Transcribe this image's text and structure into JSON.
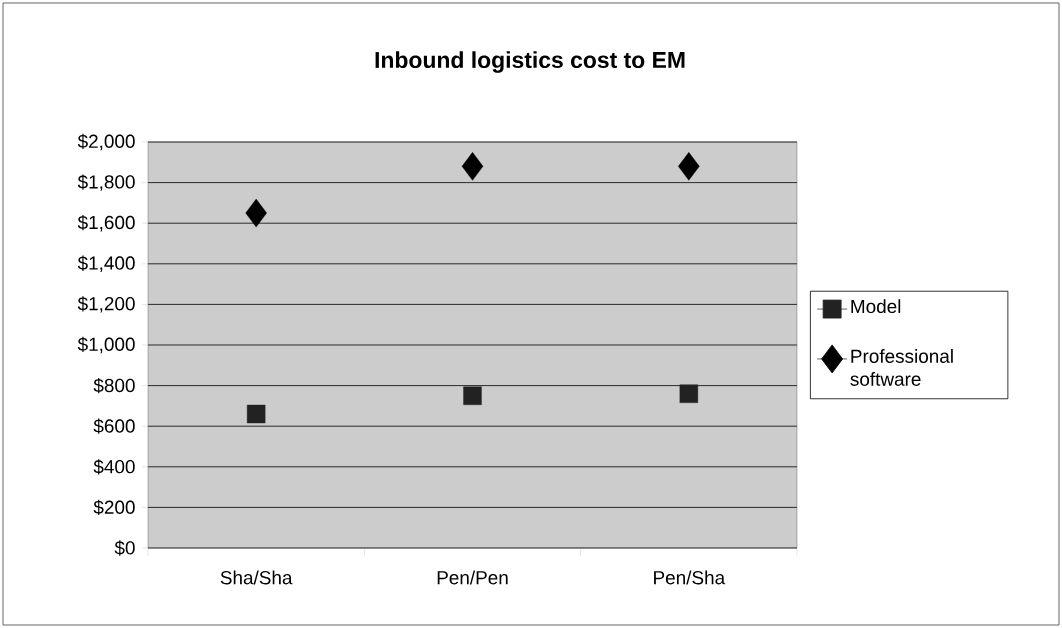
{
  "chart_data": {
    "type": "scatter",
    "title": "Inbound logistics cost to EM",
    "categories": [
      "Sha/Sha",
      "Pen/Pen",
      "Pen/Sha"
    ],
    "series": [
      {
        "name": "Model",
        "color": "#222222",
        "marker": "square",
        "values": [
          660,
          750,
          760
        ]
      },
      {
        "name": "Professional software",
        "color": "#000000",
        "marker": "diamond",
        "values": [
          1650,
          1880,
          1880
        ]
      }
    ],
    "ylim": [
      0,
      2000
    ],
    "yticks": [
      {
        "value": 0,
        "label": "$0"
      },
      {
        "value": 200,
        "label": "$200"
      },
      {
        "value": 400,
        "label": "$400"
      },
      {
        "value": 600,
        "label": "$600"
      },
      {
        "value": 800,
        "label": "$800"
      },
      {
        "value": 1000,
        "label": "$1,000"
      },
      {
        "value": 1200,
        "label": "$1,200"
      },
      {
        "value": 1400,
        "label": "$1,400"
      },
      {
        "value": 1600,
        "label": "$1,600"
      },
      {
        "value": 1800,
        "label": "$1,800"
      },
      {
        "value": 2000,
        "label": "$2,000"
      }
    ],
    "grid": "y",
    "legend": "right"
  }
}
